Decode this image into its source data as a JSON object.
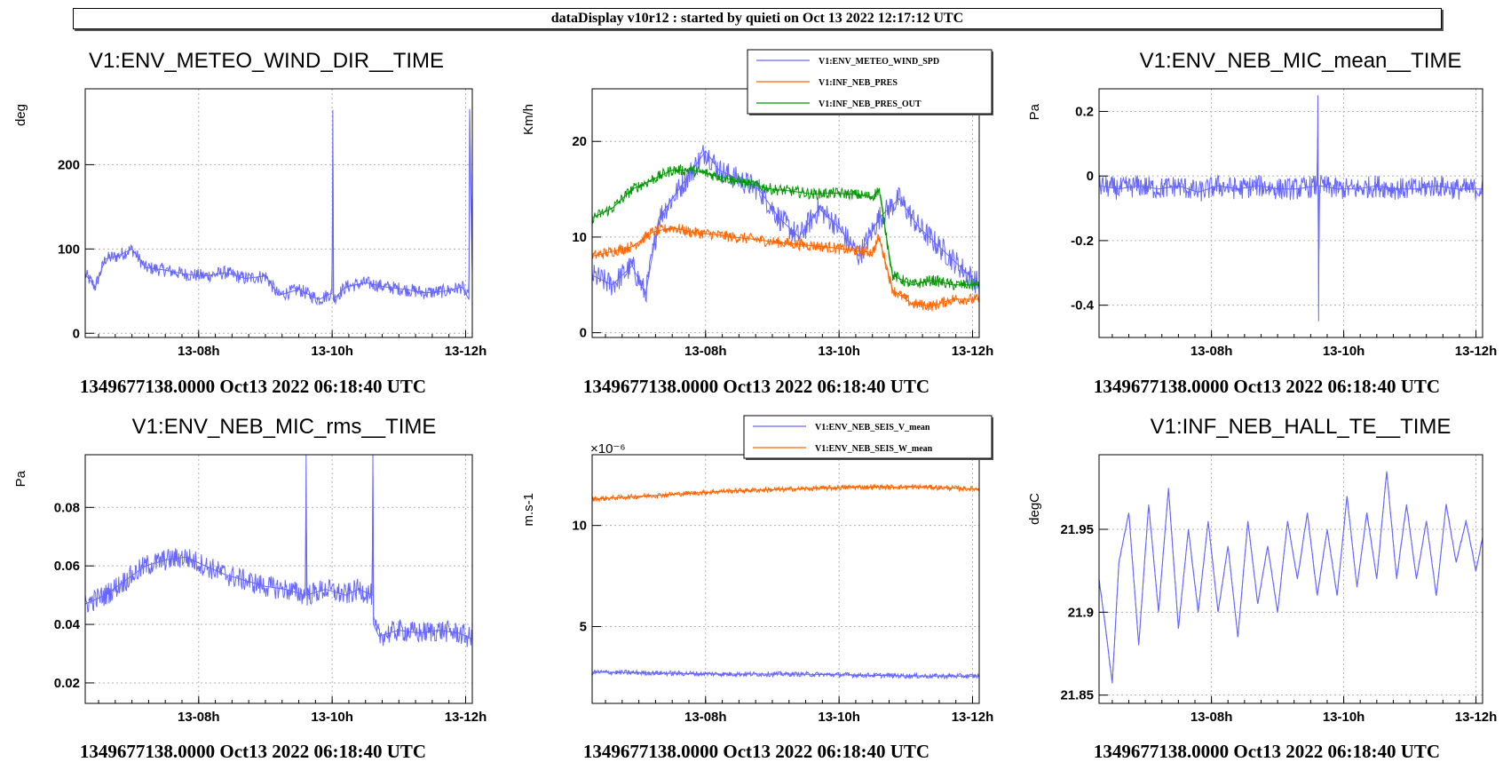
{
  "banner": "dataDisplay v10r12 : started by quieti on Oct 13 2022 12:17:12 UTC",
  "footer": "1349677138.0000 Oct13 2022 06:18:40 UTC",
  "chart_data": [
    {
      "type": "line",
      "title": "V1:ENV_METEO_WIND_DIR__TIME",
      "ylabel": "deg",
      "xlim": [
        6.3,
        12.1
      ],
      "ylim": [
        -5,
        290
      ],
      "xticks": [
        8,
        10,
        12
      ],
      "xtick_labels": [
        "13-08h",
        "13-10h",
        "13-12h"
      ],
      "yticks": [
        0,
        100,
        200
      ],
      "ytick_labels": [
        "0",
        "100",
        "200"
      ],
      "series": [
        {
          "color": "#6666ff",
          "x": [
            6.3,
            6.45,
            6.6,
            6.8,
            7.0,
            7.2,
            7.5,
            7.8,
            8.1,
            8.4,
            8.7,
            9.0,
            9.2,
            9.5,
            9.8,
            10.0,
            10.01,
            10.02,
            10.2,
            10.5,
            10.8,
            11.1,
            11.4,
            11.7,
            11.95,
            12.05,
            12.06,
            12.1
          ],
          "y": [
            70,
            55,
            88,
            92,
            100,
            78,
            75,
            70,
            68,
            72,
            65,
            68,
            45,
            52,
            40,
            48,
            265,
            40,
            55,
            60,
            55,
            52,
            48,
            50,
            55,
            40,
            265,
            70
          ]
        }
      ]
    },
    {
      "type": "line",
      "title": "",
      "ylabel": "Km/h",
      "xlim": [
        6.3,
        12.1
      ],
      "ylim": [
        -0.5,
        25.5
      ],
      "xticks": [
        8,
        10,
        12
      ],
      "xtick_labels": [
        "13-08h",
        "13-10h",
        "13-12h"
      ],
      "yticks": [
        0,
        10,
        20
      ],
      "ytick_labels": [
        "0",
        "10",
        "20"
      ],
      "legend": [
        "V1:ENV_METEO_WIND_SPD",
        "V1:INF_NEB_PRES",
        "V1:INF_NEB_PRES_OUT"
      ],
      "series": [
        {
          "name": "V1:ENV_METEO_WIND_SPD",
          "color": "#6666ff",
          "x": [
            6.3,
            6.6,
            6.9,
            7.1,
            7.3,
            7.6,
            7.8,
            8.0,
            8.2,
            8.5,
            8.8,
            9.1,
            9.4,
            9.7,
            10.0,
            10.3,
            10.6,
            10.9,
            11.2,
            11.5,
            11.8,
            12.1
          ],
          "y": [
            6,
            5,
            7,
            4,
            12,
            15,
            17,
            19,
            17,
            16,
            15,
            12,
            10,
            13,
            11,
            8,
            12,
            14,
            11,
            9,
            7,
            5
          ]
        },
        {
          "name": "V1:INF_NEB_PRES",
          "color": "#ff6600",
          "x": [
            6.3,
            6.6,
            6.9,
            7.2,
            7.5,
            7.8,
            8.1,
            8.4,
            8.7,
            9.0,
            9.3,
            9.6,
            9.9,
            10.2,
            10.5,
            10.6,
            10.8,
            11.1,
            11.4,
            11.7,
            12.1
          ],
          "y": [
            8,
            8.5,
            9,
            10.5,
            11,
            10.5,
            10.3,
            10,
            9.8,
            9.5,
            9.3,
            9.1,
            8.9,
            8.6,
            8.4,
            10,
            4.5,
            3,
            2.8,
            3.5,
            3.5
          ]
        },
        {
          "name": "V1:INF_NEB_PRES_OUT",
          "color": "#009900",
          "x": [
            6.3,
            6.6,
            6.9,
            7.2,
            7.5,
            7.8,
            8.1,
            8.4,
            8.7,
            9.0,
            9.3,
            9.6,
            9.9,
            10.2,
            10.5,
            10.6,
            10.8,
            11.1,
            11.4,
            11.7,
            12.1
          ],
          "y": [
            12,
            13,
            15,
            16,
            17,
            17,
            16.5,
            16,
            15.5,
            15,
            14.8,
            14.5,
            14.6,
            14.5,
            14.2,
            15,
            6,
            5,
            5.5,
            5,
            5
          ]
        }
      ]
    },
    {
      "type": "line",
      "title": "V1:ENV_NEB_MIC_mean__TIME",
      "ylabel": "Pa",
      "xlim": [
        6.3,
        12.1
      ],
      "ylim": [
        -0.5,
        0.27
      ],
      "xticks": [
        8,
        10,
        12
      ],
      "xtick_labels": [
        "13-08h",
        "13-10h",
        "13-12h"
      ],
      "yticks": [
        -0.4,
        -0.2,
        0,
        0.2
      ],
      "ytick_labels": [
        "-0.4",
        "-0.2",
        "0",
        "0.2"
      ],
      "series": [
        {
          "color": "#6666ff",
          "x": [
            6.3,
            6.6,
            6.9,
            7.2,
            7.5,
            7.8,
            8.1,
            8.4,
            8.7,
            9.0,
            9.3,
            9.6,
            9.61,
            9.62,
            9.63,
            9.9,
            10.2,
            10.5,
            10.8,
            11.1,
            11.4,
            11.7,
            12.1
          ],
          "y": [
            -0.03,
            -0.04,
            -0.03,
            -0.04,
            -0.03,
            -0.05,
            -0.03,
            -0.04,
            -0.03,
            -0.04,
            -0.04,
            -0.03,
            0.25,
            -0.45,
            -0.03,
            -0.04,
            -0.04,
            -0.03,
            -0.04,
            -0.04,
            -0.03,
            -0.04,
            -0.04
          ]
        }
      ]
    },
    {
      "type": "line",
      "title": "V1:ENV_NEB_MIC_rms__TIME",
      "ylabel": "Pa",
      "xlim": [
        6.3,
        12.1
      ],
      "ylim": [
        0.013,
        0.098
      ],
      "xticks": [
        8,
        10,
        12
      ],
      "xtick_labels": [
        "13-08h",
        "13-10h",
        "13-12h"
      ],
      "yticks": [
        0.02,
        0.04,
        0.06,
        0.08
      ],
      "ytick_labels": [
        "0.02",
        "0.04",
        "0.06",
        "0.08"
      ],
      "series": [
        {
          "color": "#6666ff",
          "x": [
            6.3,
            6.6,
            6.9,
            7.2,
            7.5,
            7.8,
            8.1,
            8.4,
            8.7,
            9.0,
            9.3,
            9.6,
            9.61,
            9.62,
            9.9,
            10.2,
            10.4,
            10.6,
            10.61,
            10.62,
            10.7,
            11.0,
            11.3,
            11.6,
            11.9,
            12.1
          ],
          "y": [
            0.047,
            0.05,
            0.055,
            0.06,
            0.062,
            0.063,
            0.06,
            0.057,
            0.055,
            0.053,
            0.052,
            0.05,
            0.098,
            0.05,
            0.052,
            0.05,
            0.052,
            0.05,
            0.098,
            0.04,
            0.036,
            0.038,
            0.037,
            0.038,
            0.037,
            0.035
          ]
        }
      ]
    },
    {
      "type": "line",
      "title": "",
      "ylabel": "m.s-1",
      "exponent": "×10⁻⁶",
      "xlim": [
        6.3,
        12.1
      ],
      "ylim": [
        1.2,
        13.5
      ],
      "xticks": [
        8,
        10,
        12
      ],
      "xtick_labels": [
        "13-08h",
        "13-10h",
        "13-12h"
      ],
      "yticks": [
        5,
        10
      ],
      "ytick_labels": [
        "5",
        "10"
      ],
      "legend": [
        "V1:ENV_NEB_SEIS_V_mean",
        "V1:ENV_NEB_SEIS_W_mean"
      ],
      "series": [
        {
          "name": "V1:ENV_NEB_SEIS_V_mean",
          "color": "#6666ff",
          "x": [
            6.3,
            7.3,
            8.3,
            9.3,
            10.3,
            11.3,
            12.1
          ],
          "y": [
            2.75,
            2.7,
            2.65,
            2.65,
            2.6,
            2.55,
            2.55
          ]
        },
        {
          "name": "V1:ENV_NEB_SEIS_W_mean",
          "color": "#ff6600",
          "x": [
            6.3,
            7.3,
            8.3,
            9.3,
            10.3,
            11.3,
            12.1
          ],
          "y": [
            11.3,
            11.5,
            11.7,
            11.8,
            11.9,
            11.9,
            11.8
          ]
        }
      ]
    },
    {
      "type": "line",
      "title": "V1:INF_NEB_HALL_TE__TIME",
      "ylabel": "degC",
      "xlim": [
        6.3,
        12.1
      ],
      "ylim": [
        21.845,
        21.995
      ],
      "xticks": [
        8,
        10,
        12
      ],
      "xtick_labels": [
        "13-08h",
        "13-10h",
        "13-12h"
      ],
      "yticks": [
        21.85,
        21.9,
        21.95
      ],
      "ytick_labels": [
        "21.85",
        "21.9",
        "21.95"
      ],
      "series": [
        {
          "color": "#6666ff",
          "x": [
            6.3,
            6.4,
            6.5,
            6.6,
            6.75,
            6.9,
            7.05,
            7.2,
            7.35,
            7.5,
            7.65,
            7.8,
            7.95,
            8.1,
            8.25,
            8.4,
            8.55,
            8.7,
            8.85,
            9.0,
            9.15,
            9.3,
            9.45,
            9.6,
            9.75,
            9.9,
            10.05,
            10.2,
            10.35,
            10.5,
            10.65,
            10.8,
            10.95,
            11.1,
            11.25,
            11.4,
            11.55,
            11.7,
            11.85,
            12.0,
            12.1
          ],
          "y": [
            21.92,
            21.89,
            21.857,
            21.93,
            21.96,
            21.88,
            21.965,
            21.9,
            21.975,
            21.89,
            21.95,
            21.9,
            21.955,
            21.9,
            21.94,
            21.885,
            21.955,
            21.905,
            21.94,
            21.9,
            21.955,
            21.92,
            21.96,
            21.91,
            21.95,
            21.91,
            21.97,
            21.915,
            21.96,
            21.92,
            21.985,
            21.92,
            21.965,
            21.92,
            21.955,
            21.91,
            21.965,
            21.93,
            21.955,
            21.925,
            21.945
          ]
        }
      ]
    }
  ]
}
